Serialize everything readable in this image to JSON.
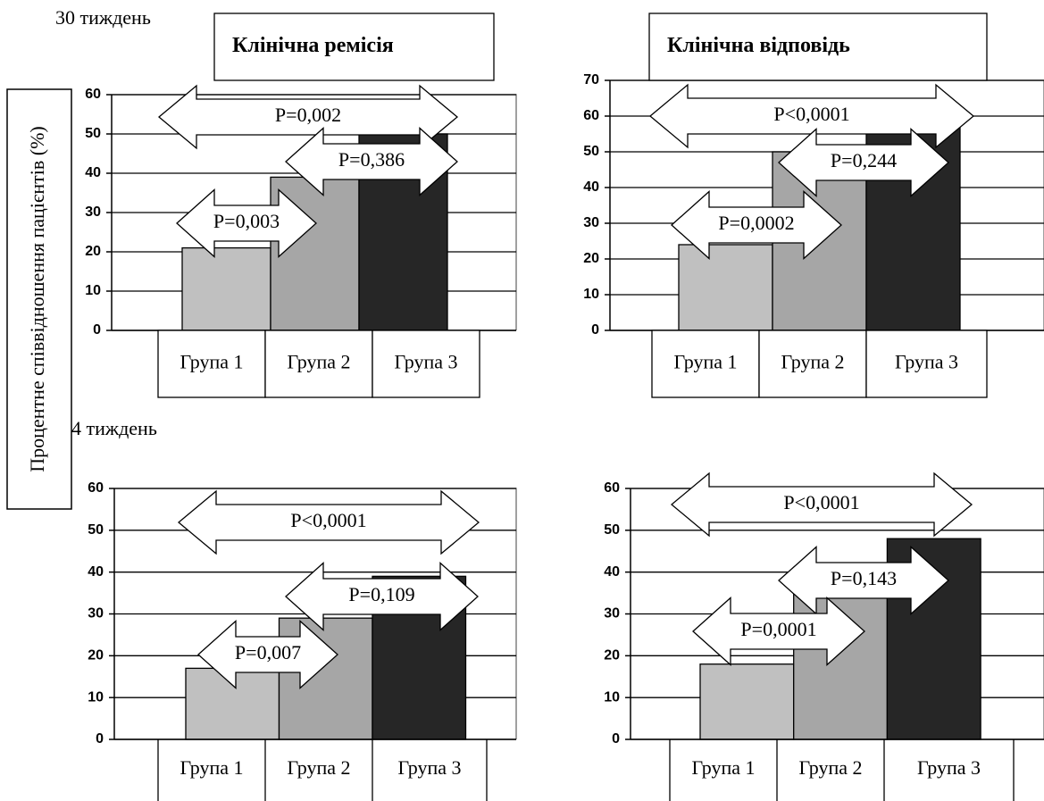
{
  "panel_labels": [
    "30 тиждень",
    "4 тиждень"
  ],
  "y_axis_label": "Процентне співвідношення пацієнтів (%)",
  "chart_data": [
    {
      "type": "bar",
      "title": "Клінічна ремісія",
      "categories": [
        "Група 1",
        "Група 2",
        "Група 3"
      ],
      "values": [
        21,
        39,
        50
      ],
      "colors": [
        "#c0c0c0",
        "#a6a6a6",
        "#262626"
      ],
      "ylim": [
        0,
        60
      ],
      "yticks": [
        0,
        10,
        20,
        30,
        40,
        50,
        60
      ],
      "grid": true,
      "annotations": [
        "P=0,002",
        "P=0,386",
        "P=0,003"
      ]
    },
    {
      "type": "bar",
      "title": "Клінічна відповідь",
      "categories": [
        "Група 1",
        "Група 2",
        "Група 3"
      ],
      "values": [
        24,
        50,
        58
      ],
      "colors": [
        "#c0c0c0",
        "#a6a6a6",
        "#262626"
      ],
      "ylim": [
        0,
        70
      ],
      "yticks": [
        0,
        10,
        20,
        30,
        40,
        50,
        60,
        70
      ],
      "grid": true,
      "annotations": [
        "P<0,0001",
        "P=0,244",
        "P=0,0002"
      ]
    },
    {
      "type": "bar",
      "categories": [
        "Група 1",
        "Група 2",
        "Група 3"
      ],
      "values": [
        17,
        29,
        39
      ],
      "colors": [
        "#c0c0c0",
        "#a6a6a6",
        "#262626"
      ],
      "ylim": [
        0,
        60
      ],
      "yticks": [
        0,
        10,
        20,
        30,
        40,
        50,
        60
      ],
      "grid": true,
      "annotations": [
        "P<0,0001",
        "P=0,109",
        "P=0,007"
      ]
    },
    {
      "type": "bar",
      "categories": [
        "Група 1",
        "Група 2",
        "Група 3"
      ],
      "values": [
        18,
        38,
        48
      ],
      "colors": [
        "#c0c0c0",
        "#a6a6a6",
        "#262626"
      ],
      "ylim": [
        0,
        60
      ],
      "yticks": [
        0,
        10,
        20,
        30,
        40,
        50,
        60
      ],
      "grid": true,
      "annotations": [
        "P<0,0001",
        "P=0,143",
        "P=0,0001"
      ]
    }
  ]
}
